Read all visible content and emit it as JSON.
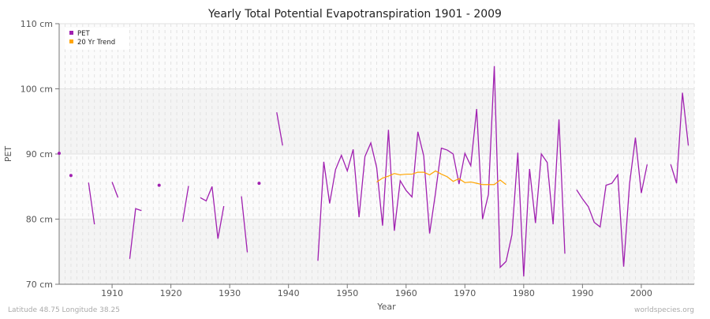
{
  "chart_data": {
    "type": "line",
    "title": "Yearly Total Potential Evapotranspiration 1901 - 2009",
    "xlabel": "Year",
    "ylabel": "PET",
    "xlim": [
      1901,
      2009
    ],
    "ylim": [
      70,
      110
    ],
    "yticks": [
      {
        "v": 70,
        "label": "70 cm"
      },
      {
        "v": 80,
        "label": "80 cm"
      },
      {
        "v": 90,
        "label": "90 cm"
      },
      {
        "v": 100,
        "label": "100 cm"
      },
      {
        "v": 110,
        "label": "110 cm"
      }
    ],
    "xticks": [
      1910,
      1920,
      1930,
      1940,
      1950,
      1960,
      1970,
      1980,
      1990,
      2000
    ],
    "grid": true,
    "legend_position": "top-left",
    "series": [
      {
        "name": "PET",
        "color": "#a020b0",
        "start": 1901,
        "values": [
          90.1,
          null,
          86.7,
          null,
          null,
          85.6,
          79.2,
          null,
          null,
          85.7,
          83.3,
          null,
          73.9,
          81.6,
          81.3,
          null,
          null,
          85.2,
          null,
          null,
          null,
          79.6,
          85.1,
          null,
          83.3,
          82.8,
          85.0,
          77.0,
          82.0,
          null,
          null,
          83.5,
          74.9,
          null,
          85.5,
          null,
          null,
          96.4,
          91.3,
          null,
          null,
          null,
          null,
          null,
          73.6,
          88.8,
          82.4,
          87.6,
          89.8,
          87.4,
          90.7,
          80.3,
          89.6,
          91.7,
          87.9,
          79.0,
          93.7,
          78.2,
          85.9,
          84.4,
          83.4,
          93.4,
          89.7,
          77.8,
          84.0,
          90.9,
          90.6,
          90.0,
          85.4,
          90.1,
          88.2,
          96.9,
          80.0,
          83.8,
          103.5,
          72.6,
          73.5,
          77.6,
          90.2,
          71.2,
          87.7,
          79.4,
          90.0,
          88.7,
          79.2,
          95.3,
          74.7,
          null,
          84.5,
          83.1,
          81.9,
          79.5,
          78.8,
          85.2,
          85.5,
          86.8,
          72.7,
          85.4,
          92.5,
          84.0,
          88.4,
          null,
          null,
          null,
          88.4,
          85.5,
          99.4,
          91.3
        ]
      },
      {
        "name": "20 Yr Trend",
        "color": "#ffa500",
        "start": 1955,
        "values": [
          85.7,
          86.3,
          86.6,
          87.0,
          86.8,
          86.9,
          86.9,
          87.2,
          87.2,
          86.8,
          87.4,
          86.9,
          86.5,
          85.8,
          86.2,
          85.6,
          85.7,
          85.5,
          85.3,
          85.3,
          85.3,
          86.0,
          85.3
        ]
      }
    ]
  },
  "footer": {
    "left": "Latitude 48.75 Longitude 38.25",
    "right": "worldspecies.org"
  }
}
